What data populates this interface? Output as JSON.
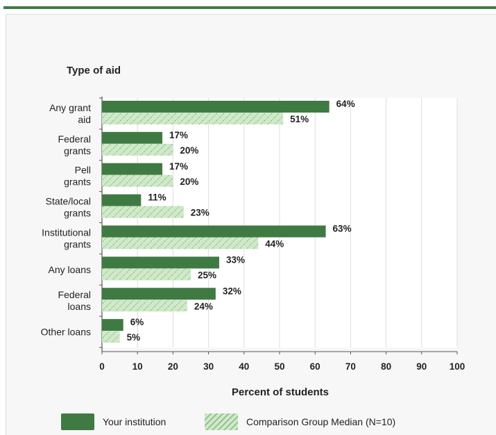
{
  "chart_data": {
    "type": "bar",
    "orientation": "horizontal",
    "title": "Type of aid",
    "xlabel": "Percent of students",
    "xlim": [
      0,
      100
    ],
    "xticks": [
      0,
      10,
      20,
      30,
      40,
      50,
      60,
      70,
      80,
      90,
      100
    ],
    "categories": [
      [
        "Any grant",
        "aid"
      ],
      [
        "Federal",
        "grants"
      ],
      [
        "Pell",
        "grants"
      ],
      [
        "State/local",
        "grants"
      ],
      [
        "Institutional",
        "grants"
      ],
      [
        "Any loans"
      ],
      [
        "Federal",
        "loans"
      ],
      [
        "Other loans"
      ]
    ],
    "series": [
      {
        "name": "Your institution",
        "values": [
          64,
          17,
          17,
          11,
          63,
          33,
          32,
          6
        ],
        "color": "#3f7a43"
      },
      {
        "name": "Comparison Group Median (N=10)",
        "values": [
          51,
          20,
          20,
          23,
          44,
          25,
          24,
          5
        ],
        "color": "#cfe9c9"
      }
    ],
    "value_suffix": "%",
    "grid": true,
    "legend_position": "bottom"
  }
}
